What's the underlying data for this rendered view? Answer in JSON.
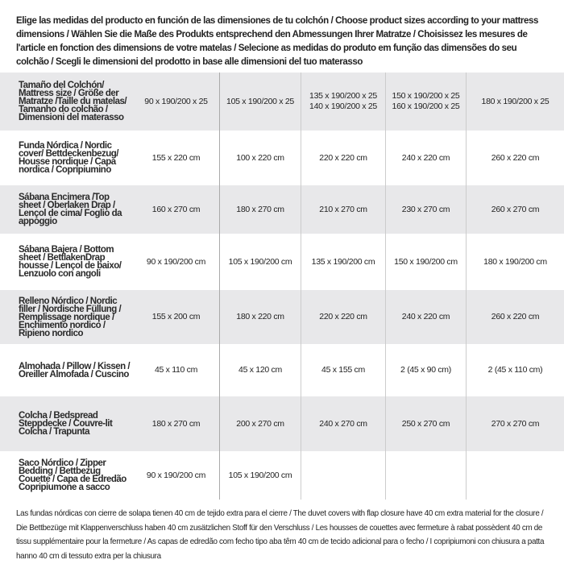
{
  "intro": "Elige las medidas del producto en función de las dimensiones de tu colchón / Choose product sizes according to your mattress dimensions / Wählen Sie die Maße des Produkts entsprechend den Abmessungen Ihrer Matratze / Choisissez les mesures de l'article en fonction des dimensions de votre matelas / Selecione as medidas do produto em função das dimensões do seu colchão / Scegli le dimensioni del prodotto in base alle dimensioni del tuo materasso",
  "rows": [
    {
      "label": "Tamaño del Colchón/ Mattress size / Größe der Matratze /Taille du matelas/ Tamanho do colchão / Dimensioni del materasso",
      "values": [
        "90 x 190/200 x 25",
        "105 x 190/200 x 25",
        "135 x 190/200 x 25\n140 x 190/200 x 25",
        "150 x 190/200 x 25\n160 x 190/200 x 25",
        "180 x 190/200 x 25"
      ]
    },
    {
      "label": "Funda Nórdica /  Nordic cover/ Bettdeckenbezug/ Housse nordique  / Capa nordica / Copripiumino",
      "values": [
        "155 x 220 cm",
        "100 x 220 cm",
        "220 x 220 cm",
        "240 x 220 cm",
        "260 x 220 cm"
      ]
    },
    {
      "label": "Sábana Encimera /Top sheet / Oberlaken Drap / Lençol de cima/ Foglio da appoggio",
      "values": [
        "160 x 270 cm",
        "180 x 270 cm",
        "210 x 270 cm",
        "230 x 270 cm",
        "260 x 270 cm"
      ]
    },
    {
      "label": "Sábana Bajera / Bottom sheet / BettlakenDrap housse / Lençol de baixo/ Lenzuolo con angoli",
      "values": [
        "90 x 190/200 cm",
        "105 x 190/200 cm",
        "135 x 190/200 cm",
        "150 x 190/200 cm",
        "180 x 190/200 cm"
      ]
    },
    {
      "label": "Relleno Nórdico / Nordic filler / Nordische Füllung / Remplissage nordique / Enchimento nordico / Ripieno nordico",
      "values": [
        "155 x 200 cm",
        "180 x 220 cm",
        "220 x 220 cm",
        "240 x 220 cm",
        "260 x 220 cm"
      ]
    },
    {
      "label": "Almohada  / Pillow / Kissen / Oreiller Almofada / Cuscino",
      "values": [
        "45 x 110 cm",
        "45 x 120 cm",
        "45 x 155 cm",
        "2 (45 x 90 cm)",
        "2 (45 x 110 cm)"
      ]
    },
    {
      "label": "Colcha / Bedspread Steppdecke / Couvre-lit Colcha / Trapunta",
      "values": [
        "180 x 270 cm",
        "200 x 270 cm",
        "240 x 270 cm",
        "250 x 270 cm",
        "270 x 270 cm"
      ]
    },
    {
      "label": "Saco Nórdico / Zipper Bedding / Bettbezug Couette  / Capa de Edredão Copripiumone a sacco",
      "values": [
        "90 x 190/200 cm",
        "105 x 190/200 cm",
        "",
        "",
        ""
      ]
    }
  ],
  "footnote": "Las fundas nórdicas con cierre de solapa tienen 40 cm de tejido extra para el cierre   / The duvet covers with flap closure have 40 cm extra material for the closure / Die Bettbezüge mit Klappenverschluss haben 40 cm zusätzlichen Stoff für den Verschluss / Les housses de couettes avec fermeture à rabat possèdent 40 cm de tissu supplémentaire pour la fermeture / As capas de edredão com fecho tipo aba têm 40 cm de tecido adicional para o fecho / I copripiumoni con chiusura a patta hanno 40 cm di tessuto extra per la chiusura"
}
